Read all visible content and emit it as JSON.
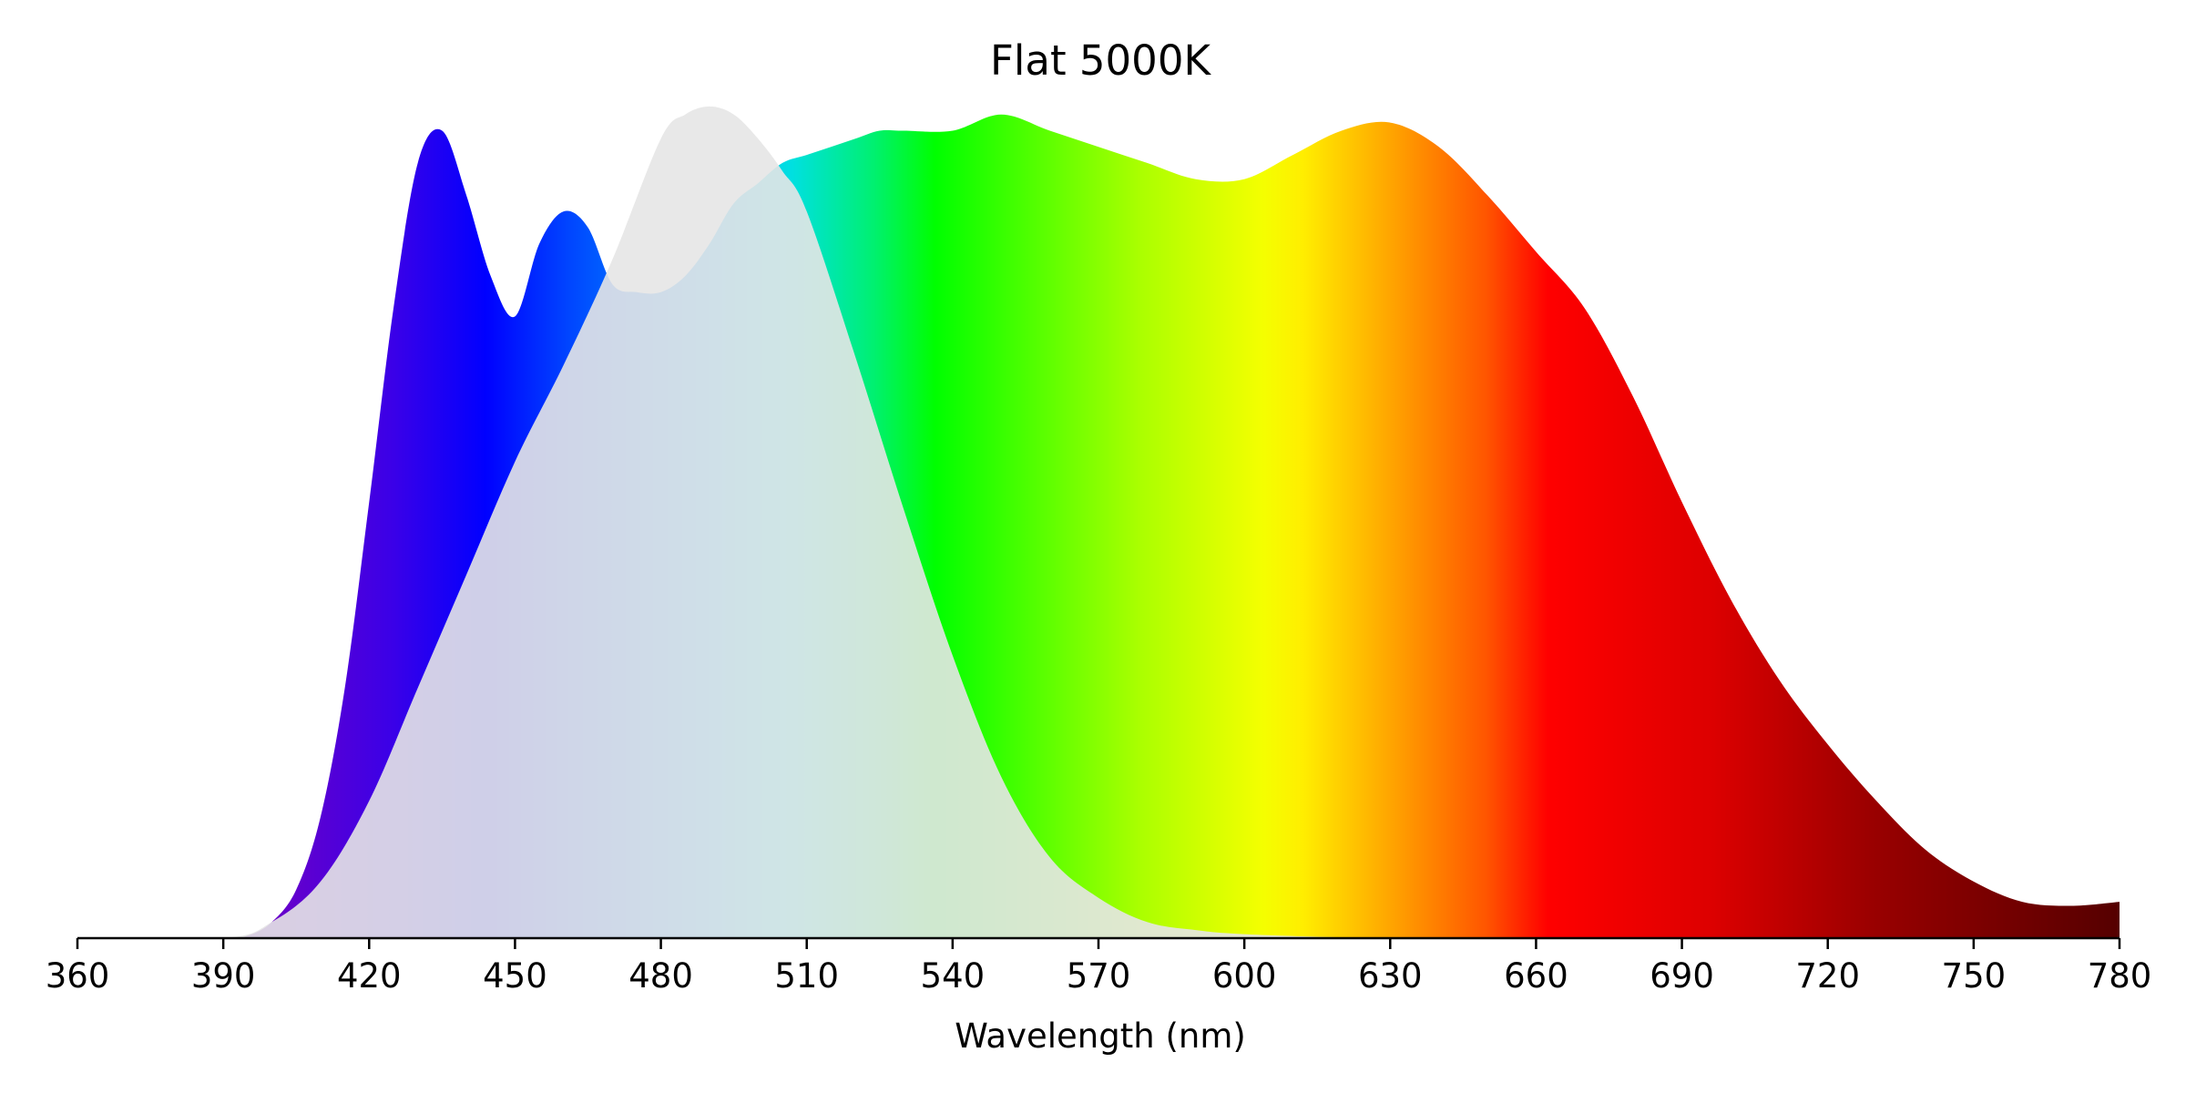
{
  "chart_data": {
    "type": "area",
    "title": "Flat 5000K",
    "xlabel": "Wavelength (nm)",
    "ylabel": "",
    "xlim": [
      360,
      780
    ],
    "ylim": [
      0,
      1.04
    ],
    "x_ticks": [
      360,
      390,
      420,
      450,
      480,
      510,
      540,
      570,
      600,
      630,
      660,
      690,
      720,
      750,
      780
    ],
    "yaxis_visible": false,
    "grid": false,
    "legend": "none",
    "fill": "visible-spectrum gradient",
    "series": [
      {
        "x": [
          360,
          390,
          395,
          400,
          405,
          410,
          415,
          420,
          425,
          430,
          435,
          440,
          445,
          450,
          455,
          460,
          465,
          470,
          475,
          480,
          485,
          490,
          495,
          500,
          505,
          510,
          515,
          520,
          525,
          530,
          540,
          550,
          560,
          570,
          580,
          590,
          600,
          610,
          620,
          630,
          640,
          650,
          660,
          670,
          680,
          690,
          700,
          710,
          720,
          730,
          740,
          750,
          760,
          770,
          780
        ],
        "y": [
          0,
          0,
          0.003,
          0.02,
          0.06,
          0.15,
          0.31,
          0.54,
          0.78,
          0.96,
          1.0,
          0.92,
          0.82,
          0.77,
          0.86,
          0.9,
          0.88,
          0.81,
          0.8,
          0.8,
          0.82,
          0.86,
          0.91,
          0.935,
          0.96,
          0.97,
          0.98,
          0.99,
          1.0,
          1.0,
          1.0,
          1.02,
          1.0,
          0.98,
          0.96,
          0.94,
          0.94,
          0.97,
          1.0,
          1.01,
          0.98,
          0.92,
          0.85,
          0.78,
          0.67,
          0.54,
          0.42,
          0.32,
          0.24,
          0.17,
          0.11,
          0.07,
          0.045,
          0.04,
          0.045
        ]
      },
      {
        "x": [
          360,
          390,
          400,
          410,
          420,
          430,
          440,
          450,
          460,
          470,
          480,
          485,
          490,
          495,
          500,
          505,
          510,
          520,
          530,
          540,
          550,
          560,
          570,
          580,
          590,
          600,
          620,
          640
        ],
        "y": [
          0,
          0,
          0.02,
          0.07,
          0.17,
          0.31,
          0.45,
          0.59,
          0.71,
          0.84,
          0.99,
          1.02,
          1.03,
          1.02,
          0.99,
          0.95,
          0.9,
          0.72,
          0.53,
          0.35,
          0.2,
          0.1,
          0.05,
          0.02,
          0.01,
          0.005,
          0.001,
          0
        ]
      }
    ]
  }
}
